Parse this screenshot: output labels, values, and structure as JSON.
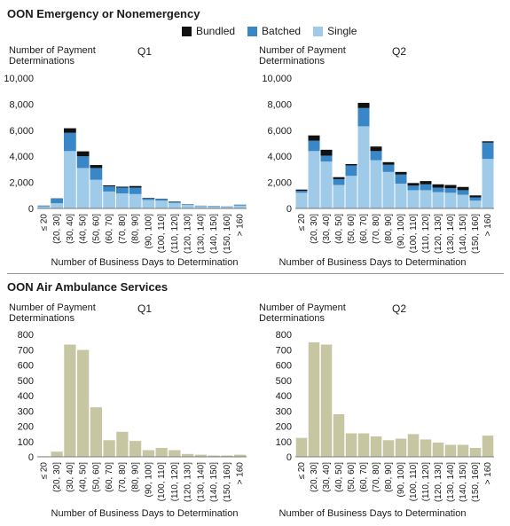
{
  "sections": {
    "emergency_title": "OON Emergency or Nonemergency",
    "air_title": "OON Air Ambulance Services"
  },
  "legend": [
    {
      "label": "Bundled",
      "color": "#111111"
    },
    {
      "label": "Batched",
      "color": "#3a87c8"
    },
    {
      "label": "Single",
      "color": "#9fcbe8"
    }
  ],
  "chart_data": [
    {
      "type": "bar",
      "stacked": true,
      "title": "Q1",
      "ylabel": "Number of Payment Determinations",
      "xlabel": "Number of Business Days to Determination",
      "ylim": [
        0,
        10000
      ],
      "yticks": [
        "0",
        "2,000",
        "4,000",
        "6,000",
        "8,000",
        "10,000"
      ],
      "categories": [
        "≤ 20",
        "(20, 30]",
        "(30, 40]",
        "(40, 50]",
        "(50, 60]",
        "(60, 70]",
        "(70, 80]",
        "(80, 90]",
        "(90, 100]",
        "(100, 110]",
        "(110, 120]",
        "(120, 130]",
        "(130, 140]",
        "(140, 150]",
        "(150, 160]",
        "> 160"
      ],
      "series": [
        {
          "name": "Single",
          "color": "#9fcbe8",
          "values": [
            150,
            400,
            4400,
            3100,
            2200,
            1300,
            1150,
            1100,
            650,
            600,
            420,
            280,
            180,
            150,
            120,
            220
          ]
        },
        {
          "name": "Batched",
          "color": "#3a87c8",
          "values": [
            60,
            350,
            1400,
            900,
            900,
            400,
            450,
            500,
            130,
            130,
            100,
            40,
            20,
            30,
            20,
            60
          ]
        },
        {
          "name": "Bundled",
          "color": "#111111",
          "values": [
            10,
            20,
            350,
            380,
            230,
            70,
            70,
            120,
            30,
            20,
            20,
            10,
            10,
            10,
            10,
            10
          ]
        }
      ]
    },
    {
      "type": "bar",
      "stacked": true,
      "title": "Q2",
      "ylabel": "Number of Payment Determinations",
      "xlabel": "Number of Business Days to Determination",
      "ylim": [
        0,
        10000
      ],
      "yticks": [
        "0",
        "2,000",
        "4,000",
        "6,000",
        "8,000",
        "10,000"
      ],
      "categories": [
        "≤ 20",
        "(20, 30]",
        "(30, 40]",
        "(40, 50]",
        "(50, 60]",
        "(60, 70]",
        "(70, 80]",
        "(80, 90]",
        "(90, 100]",
        "(100, 110]",
        "(110, 120]",
        "(120, 130]",
        "(130, 140]",
        "(140, 150]",
        "(150, 160]",
        "> 160"
      ],
      "series": [
        {
          "name": "Single",
          "color": "#9fcbe8",
          "values": [
            1200,
            4400,
            3600,
            1800,
            2500,
            6300,
            3700,
            2800,
            1900,
            1400,
            1400,
            1250,
            1200,
            1050,
            600,
            3800
          ]
        },
        {
          "name": "Batched",
          "color": "#3a87c8",
          "values": [
            150,
            800,
            450,
            450,
            800,
            1400,
            700,
            550,
            700,
            350,
            450,
            350,
            350,
            350,
            250,
            1250
          ]
        },
        {
          "name": "Bundled",
          "color": "#111111",
          "values": [
            100,
            400,
            450,
            150,
            100,
            400,
            350,
            200,
            200,
            200,
            250,
            250,
            250,
            250,
            150,
            100
          ]
        }
      ]
    },
    {
      "type": "bar",
      "title": "Q1",
      "ylabel": "Number of Payment Determinations",
      "xlabel": "Number of Business Days to Determination",
      "ylim": [
        0,
        800
      ],
      "yticks": [
        "0",
        "100",
        "200",
        "300",
        "400",
        "500",
        "600",
        "700",
        "800"
      ],
      "color": "#c6c6a2",
      "categories": [
        "≤ 20",
        "(20, 30]",
        "(30, 40]",
        "(40, 50]",
        "(50, 60]",
        "(60, 70]",
        "(70, 80]",
        "(80, 90]",
        "(90, 100]",
        "(100, 110]",
        "(110, 120]",
        "(120, 130]",
        "(130, 140]",
        "(140, 150]",
        "(150, 160]",
        "> 160"
      ],
      "values": [
        5,
        35,
        735,
        700,
        325,
        110,
        165,
        105,
        45,
        60,
        45,
        20,
        15,
        10,
        10,
        15
      ]
    },
    {
      "type": "bar",
      "title": "Q2",
      "ylabel": "Number of Payment Determinations",
      "xlabel": "Number of Business Days to Determination",
      "ylim": [
        0,
        800
      ],
      "yticks": [
        "0",
        "100",
        "200",
        "300",
        "400",
        "500",
        "600",
        "700",
        "800"
      ],
      "color": "#c6c6a2",
      "categories": [
        "≤ 20",
        "(20, 30]",
        "(30, 40]",
        "(40, 50]",
        "(50, 60]",
        "(60, 70]",
        "(70, 80]",
        "(80, 90]",
        "(90, 100]",
        "(100, 110]",
        "(110, 120]",
        "(120, 130]",
        "(130, 140]",
        "(140, 150]",
        "(150, 160]",
        "> 160"
      ],
      "values": [
        125,
        750,
        735,
        280,
        155,
        155,
        135,
        110,
        120,
        150,
        115,
        95,
        80,
        80,
        60,
        140
      ]
    }
  ]
}
